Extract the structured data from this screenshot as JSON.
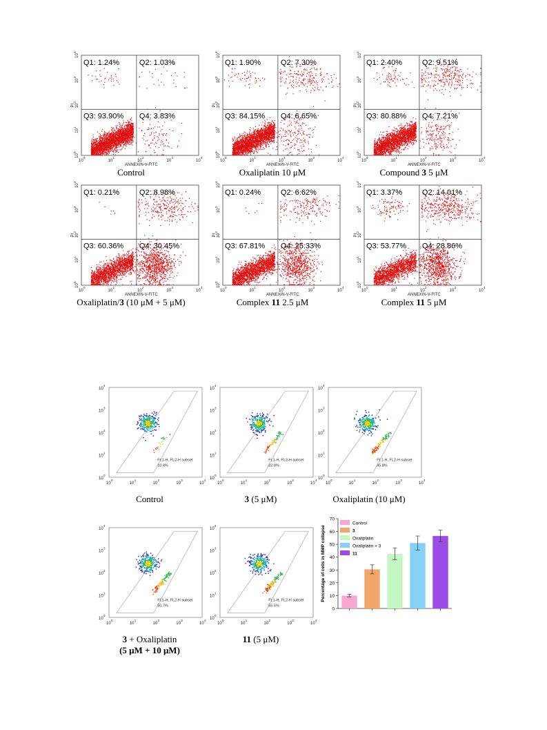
{
  "figure_a": {
    "axis": {
      "x_label": "ANNEXIN-V-FITC",
      "y_label": "PI",
      "ticks": [
        "10",
        "10",
        "10",
        "10",
        "10"
      ],
      "tick_exps": [
        "0",
        "1",
        "2",
        "3",
        "4"
      ]
    },
    "panels": [
      {
        "caption_pre": "Control",
        "caption_bold": "",
        "caption_post": "",
        "q1": "Q1: 1.24%",
        "q2": "Q2: 1.03%",
        "q3": "Q3: 93.90%",
        "q4": "Q4: 3.83%"
      },
      {
        "caption_pre": "Oxaliplatin 10 μM",
        "caption_bold": "",
        "caption_post": "",
        "q1": "Q1: 1.90%",
        "q2": "Q2: 7.30%",
        "q3": "Q3: 84.15%",
        "q4": "Q4: 6.65%"
      },
      {
        "caption_pre": "Compound ",
        "caption_bold": "3",
        "caption_post": "  5 μM",
        "q1": "Q1: 2.40%",
        "q2": "Q2: 9.51%",
        "q3": "Q3: 80.88%",
        "q4": "Q4: 7.21%"
      },
      {
        "caption_pre": "Oxaliplatin/",
        "caption_bold": "3",
        "caption_post": " (10 μM + 5 μM)",
        "q1": "Q1: 0.21%",
        "q2": "Q2: 8.98%",
        "q3": "Q3: 60.36%",
        "q4": "Q4: 30.45%"
      },
      {
        "caption_pre": "Complex ",
        "caption_bold": "11",
        "caption_post": "  2.5 μM",
        "q1": "Q1: 0.24%",
        "q2": "Q2: 6.62%",
        "q3": "Q3: 67.81%",
        "q4": "Q4: 25.33%"
      },
      {
        "caption_pre": "Complex ",
        "caption_bold": "11",
        "caption_post": "   5 μM",
        "q1": "Q1: 3.37%",
        "q2": "Q2: 14.01%",
        "q3": "Q3: 53.77%",
        "q4": "Q4: 28.86%"
      }
    ]
  },
  "figure_b": {
    "gate_label": "FL1-H, FL2-H subset",
    "ticks": [
      "10",
      "10",
      "10",
      "10",
      "10"
    ],
    "tick_exps": [
      "0",
      "1",
      "2",
      "3",
      "4"
    ],
    "panels": [
      {
        "caption_pre": "Control",
        "caption_bold": "",
        "caption_post": "",
        "caption_line2": "",
        "subset_pct": "10.4%"
      },
      {
        "caption_pre": "",
        "caption_bold": "3",
        "caption_post": " (5 μM)",
        "caption_line2": "",
        "subset_pct": "32.8%"
      },
      {
        "caption_pre": "Oxaliplatin  (10 μM)",
        "caption_bold": "",
        "caption_post": "",
        "caption_line2": "",
        "subset_pct": "45.8%"
      },
      {
        "caption_pre": "",
        "caption_bold": "3",
        "caption_post": " + Oxaliplatin",
        "caption_line2": "(5 μM + 10 μM)",
        "subset_pct": "50.7%"
      },
      {
        "caption_pre": "",
        "caption_bold": "11",
        "caption_post": " (5 μM)",
        "caption_line2": "",
        "subset_pct": "55.5%"
      }
    ]
  },
  "chart_data": {
    "type": "bar",
    "ylabel": "Percentage of cells in MMP collapse",
    "xlabel": "",
    "ylim": [
      0,
      70
    ],
    "yticks": [
      0,
      10,
      20,
      30,
      40,
      50,
      60,
      70
    ],
    "categories": [
      "Control",
      "3",
      "Oxaliplatin",
      "Oxaliplatin + 3",
      "11"
    ],
    "values": [
      10,
      30.5,
      42.5,
      51,
      56.5
    ],
    "errors": [
      1,
      3.5,
      4.5,
      5.5,
      4.5
    ],
    "colors": [
      "#f8a7d3",
      "#f2a66a",
      "#c3f8c3",
      "#86cff5",
      "#9b4ce6"
    ],
    "legend_position": "top-left",
    "grid": false
  }
}
